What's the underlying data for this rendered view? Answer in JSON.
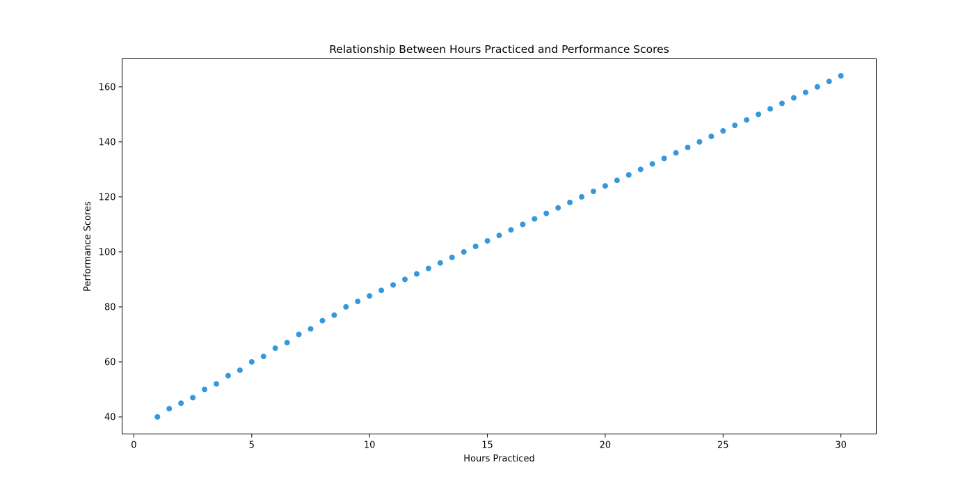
{
  "chart_data": {
    "type": "scatter",
    "title": "Relationship Between Hours Practiced and Performance Scores",
    "xlabel": "Hours Practiced",
    "ylabel": "Performance Scores",
    "xlim": [
      -0.5,
      31.5
    ],
    "ylim": [
      33.8,
      170.2
    ],
    "xticks": [
      0,
      5,
      10,
      15,
      20,
      25,
      30
    ],
    "yticks": [
      40,
      60,
      80,
      100,
      120,
      140,
      160
    ],
    "xtick_labels": [
      "0",
      "5",
      "10",
      "15",
      "20",
      "25",
      "30"
    ],
    "ytick_labels": [
      "40",
      "60",
      "80",
      "100",
      "120",
      "140",
      "160"
    ],
    "grid": false,
    "marker_color": "#3498db",
    "series": [
      {
        "x": [
          1,
          1.5,
          2,
          2.5,
          3,
          3.5,
          4,
          4.5,
          5,
          5.5,
          6,
          6.5,
          7,
          7.5,
          8,
          8.5,
          9,
          9.5,
          10,
          10.5,
          11,
          11.5,
          12,
          12.5,
          13,
          13.5,
          14,
          14.5,
          15,
          15.5,
          16,
          16.5,
          17,
          17.5,
          18,
          18.5,
          19,
          19.5,
          20,
          20.5,
          21,
          21.5,
          22,
          22.5,
          23,
          23.5,
          24,
          24.5,
          25,
          25.5,
          26,
          26.5,
          27,
          27.5,
          28,
          28.5,
          29,
          29.5,
          30
        ],
        "y": [
          40,
          43,
          45,
          47,
          50,
          52,
          55,
          57,
          60,
          62,
          65,
          67,
          70,
          72,
          75,
          77,
          80,
          82,
          84,
          86,
          88,
          90,
          92,
          94,
          96,
          98,
          100,
          102,
          104,
          106,
          108,
          110,
          112,
          114,
          116,
          118,
          120,
          122,
          124,
          126,
          128,
          130,
          132,
          134,
          136,
          138,
          140,
          142,
          144,
          146,
          148,
          150,
          152,
          154,
          156,
          158,
          160,
          162,
          164
        ]
      }
    ]
  }
}
